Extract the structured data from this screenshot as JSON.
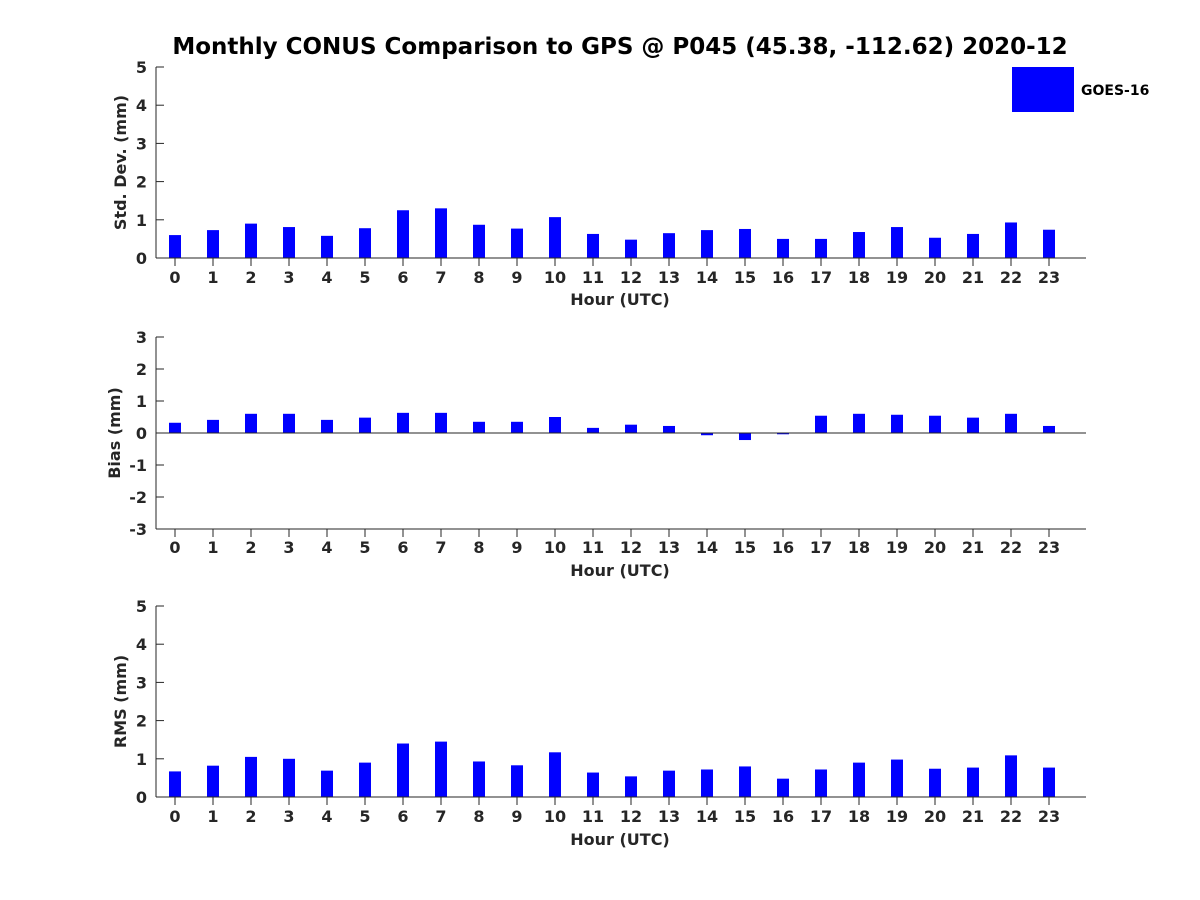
{
  "chart_data": {
    "type": "bar",
    "title": "Monthly CONUS Comparison to GPS @ P045 (45.38, -112.62) 2020-12",
    "legend": {
      "label": "GOES-16",
      "color": "#0000ff",
      "placement": "top-right"
    },
    "bar_color": "#0000ff",
    "categories": [
      "0",
      "1",
      "2",
      "3",
      "4",
      "5",
      "6",
      "7",
      "8",
      "9",
      "10",
      "11",
      "12",
      "13",
      "14",
      "15",
      "16",
      "17",
      "18",
      "19",
      "20",
      "21",
      "22",
      "23"
    ],
    "panels": [
      {
        "id": "std",
        "ylabel": "Std. Dev. (mm)",
        "xlabel": "Hour (UTC)",
        "ylim": [
          0,
          5
        ],
        "yticks": [
          0,
          1,
          2,
          3,
          4,
          5
        ],
        "series": [
          {
            "name": "GOES-16",
            "values": [
              0.6,
              0.73,
              0.9,
              0.81,
              0.58,
              0.78,
              1.25,
              1.3,
              0.87,
              0.77,
              1.07,
              0.63,
              0.48,
              0.65,
              0.73,
              0.76,
              0.5,
              0.5,
              0.68,
              0.81,
              0.53,
              0.63,
              0.93,
              0.74
            ]
          }
        ]
      },
      {
        "id": "bias",
        "ylabel": "Bias (mm)",
        "xlabel": "Hour (UTC)",
        "ylim": [
          -3,
          3
        ],
        "yticks": [
          -3,
          -2,
          -1,
          0,
          1,
          2,
          3
        ],
        "series": [
          {
            "name": "GOES-16",
            "values": [
              0.32,
              0.41,
              0.6,
              0.6,
              0.41,
              0.48,
              0.63,
              0.63,
              0.35,
              0.35,
              0.5,
              0.16,
              0.26,
              0.22,
              -0.07,
              -0.22,
              -0.04,
              0.54,
              0.6,
              0.57,
              0.54,
              0.48,
              0.6,
              0.22
            ]
          }
        ]
      },
      {
        "id": "rms",
        "ylabel": "RMS (mm)",
        "xlabel": "Hour (UTC)",
        "ylim": [
          0,
          5
        ],
        "yticks": [
          0,
          1,
          2,
          3,
          4,
          5
        ],
        "series": [
          {
            "name": "GOES-16",
            "values": [
              0.67,
              0.82,
              1.05,
              1.0,
              0.69,
              0.9,
              1.4,
              1.45,
              0.93,
              0.83,
              1.17,
              0.64,
              0.54,
              0.69,
              0.72,
              0.8,
              0.48,
              0.72,
              0.9,
              0.98,
              0.74,
              0.77,
              1.09,
              0.77
            ]
          }
        ]
      }
    ]
  }
}
